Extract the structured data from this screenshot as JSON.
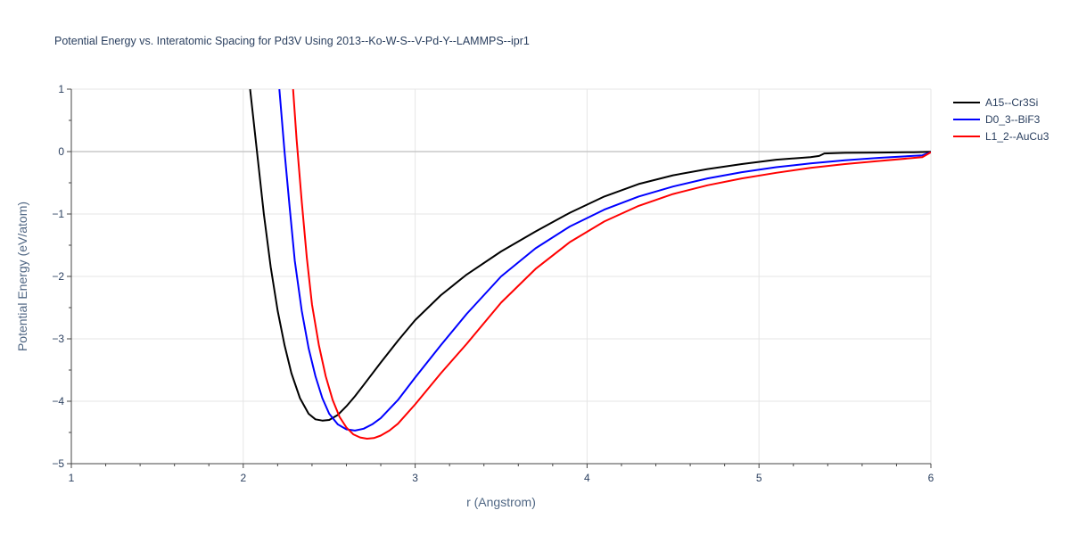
{
  "chart_data": {
    "type": "line",
    "title": "Potential Energy vs. Interatomic Spacing for Pd3V Using 2013--Ko-W-S--V-Pd-Y--LAMMPS--ipr1",
    "xlabel": "r (Angstrom)",
    "ylabel": "Potential Energy (eV/atom)",
    "xlim": [
      1,
      6
    ],
    "ylim": [
      -5,
      1
    ],
    "x_ticks": [
      1,
      2,
      3,
      4,
      5,
      6
    ],
    "y_ticks": [
      1,
      0,
      -1,
      -2,
      -3,
      -4,
      -5
    ],
    "x_tick_labels": [
      "1",
      "2",
      "3",
      "4",
      "5",
      "6"
    ],
    "y_tick_labels": [
      "1",
      "0",
      "−1",
      "−2",
      "−3",
      "−4",
      "−5"
    ],
    "grid": true,
    "legend_position": "top-right",
    "series": [
      {
        "name": "A15--Cr3Si",
        "color": "#000000",
        "x": [
          2.04,
          2.08,
          2.12,
          2.16,
          2.2,
          2.24,
          2.28,
          2.33,
          2.38,
          2.42,
          2.46,
          2.5,
          2.55,
          2.6,
          2.65,
          2.7,
          2.8,
          2.9,
          3.0,
          3.15,
          3.3,
          3.5,
          3.7,
          3.9,
          4.1,
          4.3,
          4.5,
          4.7,
          4.9,
          5.1,
          5.3,
          5.35,
          5.38,
          5.5,
          5.7,
          5.9,
          6.0
        ],
        "y": [
          1.0,
          0.0,
          -1.0,
          -1.85,
          -2.55,
          -3.1,
          -3.55,
          -3.95,
          -4.2,
          -4.29,
          -4.31,
          -4.3,
          -4.22,
          -4.08,
          -3.92,
          -3.74,
          -3.38,
          -3.03,
          -2.7,
          -2.3,
          -1.97,
          -1.6,
          -1.28,
          -0.98,
          -0.72,
          -0.52,
          -0.38,
          -0.28,
          -0.2,
          -0.13,
          -0.09,
          -0.07,
          -0.03,
          -0.02,
          -0.015,
          -0.01,
          -0.005
        ]
      },
      {
        "name": "D0_3--BiF3",
        "color": "#0000ff",
        "x": [
          2.21,
          2.24,
          2.27,
          2.3,
          2.34,
          2.38,
          2.42,
          2.46,
          2.5,
          2.55,
          2.6,
          2.65,
          2.7,
          2.75,
          2.8,
          2.9,
          3.0,
          3.15,
          3.3,
          3.5,
          3.7,
          3.9,
          4.1,
          4.3,
          4.5,
          4.7,
          4.9,
          5.1,
          5.3,
          5.5,
          5.7,
          5.95,
          6.0
        ],
        "y": [
          1.0,
          0.0,
          -0.9,
          -1.75,
          -2.55,
          -3.15,
          -3.6,
          -3.95,
          -4.2,
          -4.37,
          -4.45,
          -4.47,
          -4.44,
          -4.37,
          -4.27,
          -3.98,
          -3.62,
          -3.1,
          -2.6,
          -2.0,
          -1.55,
          -1.2,
          -0.93,
          -0.72,
          -0.56,
          -0.43,
          -0.33,
          -0.25,
          -0.19,
          -0.14,
          -0.1,
          -0.06,
          -0.01
        ]
      },
      {
        "name": "L1_2--AuCu3",
        "color": "#ff0000",
        "x": [
          2.29,
          2.31,
          2.34,
          2.37,
          2.4,
          2.44,
          2.48,
          2.52,
          2.56,
          2.6,
          2.64,
          2.68,
          2.72,
          2.76,
          2.8,
          2.85,
          2.9,
          3.0,
          3.15,
          3.3,
          3.5,
          3.7,
          3.9,
          4.1,
          4.3,
          4.5,
          4.7,
          4.9,
          5.1,
          5.3,
          5.5,
          5.7,
          5.95,
          6.0
        ],
        "y": [
          1.0,
          0.2,
          -0.8,
          -1.7,
          -2.45,
          -3.1,
          -3.6,
          -3.98,
          -4.25,
          -4.42,
          -4.53,
          -4.58,
          -4.6,
          -4.59,
          -4.55,
          -4.47,
          -4.36,
          -4.05,
          -3.55,
          -3.08,
          -2.42,
          -1.88,
          -1.45,
          -1.12,
          -0.87,
          -0.68,
          -0.54,
          -0.43,
          -0.34,
          -0.26,
          -0.2,
          -0.15,
          -0.09,
          -0.01
        ]
      }
    ]
  }
}
